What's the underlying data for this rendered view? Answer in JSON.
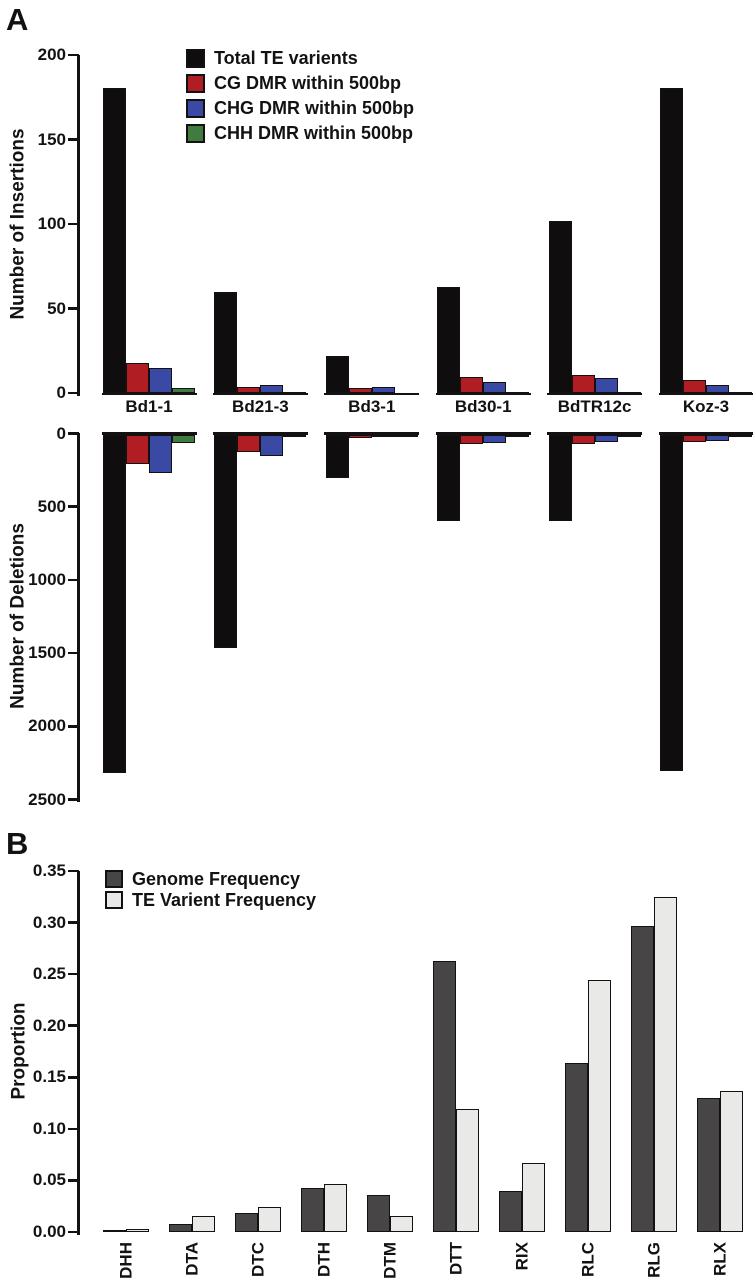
{
  "figure": {
    "panel_a_label": "A",
    "panel_b_label": "B"
  },
  "chart_data": [
    {
      "id": "insertions",
      "panel": "A",
      "type": "bar",
      "title": "",
      "ylabel": "Number of Insertions",
      "xlabel": "",
      "ylim": [
        0,
        200
      ],
      "yticks": [
        0,
        50,
        100,
        150,
        200
      ],
      "grid": false,
      "legend_position": "top-left-inside",
      "categories": [
        "Bd1-1",
        "Bd21-3",
        "Bd3-1",
        "Bd30-1",
        "BdTR12c",
        "Koz-3"
      ],
      "series": [
        {
          "name": "Total TE varients",
          "color": "#0F0D0E",
          "values": [
            181,
            60,
            22,
            63,
            102,
            181
          ]
        },
        {
          "name": "CG DMR within 500bp",
          "color": "#B01E24",
          "values": [
            18,
            4,
            3,
            10,
            11,
            8
          ]
        },
        {
          "name": "CHG DMR within 500bp",
          "color": "#3A49A4",
          "values": [
            15,
            5,
            4,
            7,
            9,
            5
          ]
        },
        {
          "name": "CHH DMR within 500bp",
          "color": "#407C40",
          "values": [
            3,
            1,
            0,
            1,
            1,
            1
          ]
        }
      ]
    },
    {
      "id": "deletions",
      "panel": "A",
      "type": "bar",
      "title": "",
      "orientation": "downward",
      "ylabel": "Number of Deletions",
      "xlabel": "",
      "ylim": [
        0,
        2500
      ],
      "yticks": [
        0,
        500,
        1000,
        1500,
        2000,
        2500
      ],
      "grid": false,
      "categories": [
        "Bd1-1",
        "Bd21-3",
        "Bd3-1",
        "Bd30-1",
        "BdTR12c",
        "Koz-3"
      ],
      "series": [
        {
          "name": "Total TE varients",
          "color": "#0F0D0E",
          "values": [
            2310,
            1460,
            295,
            590,
            590,
            2300
          ]
        },
        {
          "name": "CG DMR within 500bp",
          "color": "#B01E24",
          "values": [
            200,
            120,
            27,
            68,
            65,
            51
          ]
        },
        {
          "name": "CHG DMR within 500bp",
          "color": "#3A49A4",
          "values": [
            260,
            145,
            17,
            55,
            51,
            41
          ]
        },
        {
          "name": "CHH DMR within 500bp",
          "color": "#407C40",
          "values": [
            55,
            20,
            5,
            14,
            14,
            10
          ]
        }
      ]
    },
    {
      "id": "te_family_frequency",
      "panel": "B",
      "type": "bar",
      "title": "",
      "ylabel": "Proportion",
      "xlabel": "",
      "ylim": [
        0,
        0.35
      ],
      "yticks": [
        0,
        0.05,
        0.1,
        0.15,
        0.2,
        0.25,
        0.3,
        0.35
      ],
      "grid": false,
      "legend_position": "top-left-inside",
      "categories": [
        "DHH",
        "DTA",
        "DTC",
        "DTH",
        "DTM",
        "DTT",
        "RIX",
        "RLC",
        "RLG",
        "RLX"
      ],
      "series": [
        {
          "name": "Genome Frequency",
          "color": "#474546",
          "values": [
            0.002,
            0.008,
            0.019,
            0.043,
            0.036,
            0.263,
            0.04,
            0.164,
            0.297,
            0.13
          ]
        },
        {
          "name": "TE Varient Frequency",
          "color": "#E9E9E7",
          "values": [
            0.003,
            0.016,
            0.025,
            0.047,
            0.016,
            0.12,
            0.067,
            0.245,
            0.325,
            0.137
          ]
        }
      ]
    }
  ]
}
